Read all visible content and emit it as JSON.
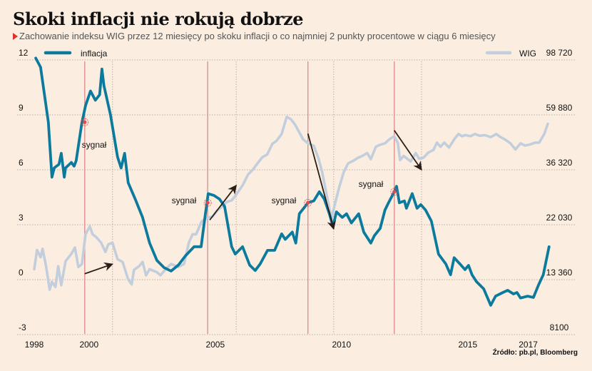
{
  "header": {
    "title": "Skoki inflacji nie rokują dobrze",
    "subtitle": "Zachowanie indeksu WIG przez 12 miesięcy po skoku inflacji o co najmniej 2 punkty procentowe w ciągu 6 miesięcy"
  },
  "source": "Źródło: pb.pl, Bloomberg",
  "colors": {
    "background": "#fbeee0",
    "inflation": "#0b7a9c",
    "wig": "#c3cedd",
    "signal_line": "#e08f92",
    "signal_dot": "#e8474b",
    "arrow": "#2a1e16",
    "grid": "#b8aea3"
  },
  "chart_data": {
    "type": "line",
    "title": "Skoki inflacji nie rokują dobrze",
    "subtitle": "Zachowanie indeksu WIG przez 12 miesięcy po skoku inflacji o co najmniej 2 punkty procentowe w ciągu 6 miesięcy",
    "x_ticks": [
      "1998",
      "2000",
      "2005",
      "2010",
      "2015",
      "2017"
    ],
    "x_tick_values": [
      1998,
      2000,
      2005,
      2010,
      2015,
      2017
    ],
    "xlim": [
      1998,
      2017.2
    ],
    "left_axis": {
      "label": "inflacja",
      "ticks": [
        "12",
        "9",
        "6",
        "3",
        "0",
        "-3"
      ],
      "tick_values": [
        12,
        9,
        6,
        3,
        0,
        -3
      ],
      "ylim": [
        -3,
        12
      ]
    },
    "right_axis": {
      "label": "WIG",
      "scale": "log",
      "ticks": [
        "98 720",
        "59 880",
        "36 320",
        "22 030",
        "13 360",
        "8100"
      ],
      "tick_values": [
        98720,
        59880,
        36320,
        22030,
        13360,
        8100
      ]
    },
    "grid": true,
    "legend": [
      {
        "name": "inflacja",
        "position": "top-left"
      },
      {
        "name": "WIG",
        "position": "top-right"
      }
    ],
    "signals": [
      {
        "label": "sygnał",
        "x": 2000.0,
        "inflation": 8.6
      },
      {
        "label": "sygnał",
        "x": 2004.87,
        "inflation": 4.2
      },
      {
        "label": "sygnał",
        "x": 2008.84,
        "inflation": 4.2
      },
      {
        "label": "sygnał",
        "x": 2012.26,
        "inflation": 4.8
      }
    ],
    "signal_followups": [
      2001.1,
      2006.0,
      2009.86,
      2013.34
    ],
    "arrows": [
      {
        "from": [
          2000.0,
          14100
        ],
        "to": [
          2001.1,
          15400
        ]
      },
      {
        "from": [
          2004.95,
          23000
        ],
        "to": [
          2006.0,
          31500
        ]
      },
      {
        "from": [
          2008.84,
          50500
        ],
        "to": [
          2009.86,
          21200
        ]
      },
      {
        "from": [
          2012.26,
          52000
        ],
        "to": [
          2013.34,
          36300
        ]
      }
    ],
    "series": [
      {
        "name": "inflacja",
        "axis": "left",
        "points": [
          [
            1998.06,
            12.1
          ],
          [
            1998.25,
            11.6
          ],
          [
            1998.56,
            8.6
          ],
          [
            1998.7,
            5.6
          ],
          [
            1998.79,
            6.1
          ],
          [
            1998.98,
            6.3
          ],
          [
            1999.07,
            6.9
          ],
          [
            1999.19,
            5.6
          ],
          [
            1999.24,
            6.1
          ],
          [
            1999.47,
            6.4
          ],
          [
            1999.58,
            6.2
          ],
          [
            1999.66,
            6.5
          ],
          [
            1999.89,
            8.6
          ],
          [
            2000.03,
            9.5
          ],
          [
            2000.23,
            10.3
          ],
          [
            2000.42,
            9.8
          ],
          [
            2000.59,
            10.1
          ],
          [
            2000.68,
            11.5
          ],
          [
            2000.76,
            10.6
          ],
          [
            2001.02,
            9.0
          ],
          [
            2001.3,
            6.7
          ],
          [
            2001.44,
            6.1
          ],
          [
            2001.58,
            6.9
          ],
          [
            2001.72,
            5.3
          ],
          [
            2002.0,
            4.4
          ],
          [
            2002.29,
            3.4
          ],
          [
            2002.57,
            2.0
          ],
          [
            2002.86,
            1.05
          ],
          [
            2003.14,
            0.66
          ],
          [
            2003.42,
            0.47
          ],
          [
            2003.71,
            0.8
          ],
          [
            2003.99,
            1.3
          ],
          [
            2004.33,
            1.8
          ],
          [
            2004.61,
            1.8
          ],
          [
            2004.78,
            3.6
          ],
          [
            2004.89,
            4.7
          ],
          [
            2005.12,
            4.6
          ],
          [
            2005.34,
            4.4
          ],
          [
            2005.54,
            4.0
          ],
          [
            2005.82,
            1.8
          ],
          [
            2005.96,
            1.4
          ],
          [
            2006.25,
            1.8
          ],
          [
            2006.53,
            0.8
          ],
          [
            2006.75,
            0.5
          ],
          [
            2006.95,
            0.86
          ],
          [
            2007.24,
            1.6
          ],
          [
            2007.52,
            1.6
          ],
          [
            2007.8,
            2.5
          ],
          [
            2007.94,
            2.2
          ],
          [
            2008.22,
            2.6
          ],
          [
            2008.36,
            2.0
          ],
          [
            2008.5,
            3.6
          ],
          [
            2008.73,
            4.0
          ],
          [
            2008.84,
            4.2
          ],
          [
            2009.07,
            4.3
          ],
          [
            2009.29,
            4.8
          ],
          [
            2009.49,
            4.4
          ],
          [
            2009.69,
            3.6
          ],
          [
            2009.83,
            2.9
          ],
          [
            2009.97,
            3.7
          ],
          [
            2010.2,
            3.4
          ],
          [
            2010.37,
            3.6
          ],
          [
            2010.56,
            3.1
          ],
          [
            2010.85,
            3.6
          ],
          [
            2011.05,
            2.6
          ],
          [
            2011.33,
            2.0
          ],
          [
            2011.47,
            2.4
          ],
          [
            2011.7,
            2.8
          ],
          [
            2011.89,
            3.8
          ],
          [
            2012.03,
            4.2
          ],
          [
            2012.26,
            4.8
          ],
          [
            2012.35,
            5.1
          ],
          [
            2012.46,
            4.2
          ],
          [
            2012.66,
            4.3
          ],
          [
            2012.74,
            3.9
          ],
          [
            2012.97,
            4.7
          ],
          [
            2013.16,
            3.9
          ],
          [
            2013.31,
            4.1
          ],
          [
            2013.5,
            3.8
          ],
          [
            2013.73,
            3.2
          ],
          [
            2014.01,
            1.4
          ],
          [
            2014.3,
            0.86
          ],
          [
            2014.49,
            0.27
          ],
          [
            2014.63,
            1.2
          ],
          [
            2014.86,
            0.86
          ],
          [
            2015.06,
            0.55
          ],
          [
            2015.2,
            0.78
          ],
          [
            2015.34,
            0.27
          ],
          [
            2015.51,
            -0.1
          ],
          [
            2015.8,
            -0.5
          ],
          [
            2016.08,
            -1.4
          ],
          [
            2016.27,
            -0.9
          ],
          [
            2016.56,
            -0.7
          ],
          [
            2016.75,
            -0.58
          ],
          [
            2016.98,
            -0.78
          ],
          [
            2017.12,
            -0.7
          ],
          [
            2017.26,
            -1.0
          ],
          [
            2017.54,
            -0.9
          ],
          [
            2017.77,
            -0.97
          ],
          [
            2017.97,
            -0.3
          ],
          [
            2018.16,
            0.27
          ],
          [
            2018.39,
            1.8
          ]
        ]
      },
      {
        "name": "WIG",
        "axis": "right",
        "points": [
          [
            1998.0,
            14700
          ],
          [
            1998.11,
            17500
          ],
          [
            1998.25,
            16400
          ],
          [
            1998.33,
            17700
          ],
          [
            1998.47,
            15100
          ],
          [
            1998.61,
            12200
          ],
          [
            1998.7,
            13100
          ],
          [
            1998.84,
            12500
          ],
          [
            1998.95,
            15100
          ],
          [
            1999.07,
            12700
          ],
          [
            1999.24,
            15800
          ],
          [
            1999.47,
            16900
          ],
          [
            1999.61,
            17900
          ],
          [
            1999.75,
            15000
          ],
          [
            1999.89,
            15400
          ],
          [
            2000.03,
            20200
          ],
          [
            2000.2,
            21700
          ],
          [
            2000.31,
            20200
          ],
          [
            2000.45,
            19700
          ],
          [
            2000.65,
            18700
          ],
          [
            2000.82,
            17200
          ],
          [
            2000.93,
            18400
          ],
          [
            2001.1,
            18700
          ],
          [
            2001.3,
            16100
          ],
          [
            2001.5,
            15700
          ],
          [
            2001.72,
            13400
          ],
          [
            2001.86,
            12800
          ],
          [
            2001.95,
            14600
          ],
          [
            2002.15,
            15100
          ],
          [
            2002.29,
            15700
          ],
          [
            2002.43,
            13900
          ],
          [
            2002.57,
            14700
          ],
          [
            2002.86,
            14300
          ],
          [
            2003.0,
            13900
          ],
          [
            2003.2,
            14700
          ],
          [
            2003.42,
            15400
          ],
          [
            2003.71,
            15000
          ],
          [
            2003.93,
            15400
          ],
          [
            2004.13,
            18800
          ],
          [
            2004.27,
            20200
          ],
          [
            2004.41,
            20200
          ],
          [
            2004.63,
            22700
          ],
          [
            2004.83,
            23500
          ],
          [
            2005.06,
            23700
          ],
          [
            2005.25,
            25100
          ],
          [
            2005.45,
            26000
          ],
          [
            2005.62,
            27100
          ],
          [
            2005.82,
            27500
          ],
          [
            2005.96,
            28600
          ],
          [
            2006.25,
            31500
          ],
          [
            2006.47,
            34800
          ],
          [
            2006.67,
            36500
          ],
          [
            2006.86,
            38700
          ],
          [
            2007.03,
            40700
          ],
          [
            2007.23,
            41800
          ],
          [
            2007.43,
            46000
          ],
          [
            2007.6,
            47300
          ],
          [
            2007.8,
            50300
          ],
          [
            2008.0,
            58800
          ],
          [
            2008.17,
            57500
          ],
          [
            2008.34,
            54600
          ],
          [
            2008.45,
            52100
          ],
          [
            2008.65,
            47900
          ],
          [
            2008.84,
            46200
          ],
          [
            2009.07,
            45200
          ],
          [
            2009.26,
            40200
          ],
          [
            2009.4,
            35600
          ],
          [
            2009.57,
            29300
          ],
          [
            2009.77,
            23300
          ],
          [
            2009.92,
            26900
          ],
          [
            2010.09,
            31300
          ],
          [
            2010.26,
            35600
          ],
          [
            2010.43,
            38500
          ],
          [
            2010.63,
            39400
          ],
          [
            2010.82,
            40500
          ],
          [
            2010.99,
            41200
          ],
          [
            2011.19,
            42300
          ],
          [
            2011.33,
            40000
          ],
          [
            2011.53,
            44800
          ],
          [
            2011.67,
            45500
          ],
          [
            2011.89,
            46200
          ],
          [
            2012.06,
            47900
          ],
          [
            2012.26,
            49300
          ],
          [
            2012.4,
            46300
          ],
          [
            2012.49,
            39700
          ],
          [
            2012.63,
            41200
          ],
          [
            2012.77,
            40200
          ],
          [
            2012.91,
            39200
          ],
          [
            2013.11,
            42300
          ],
          [
            2013.24,
            40200
          ],
          [
            2013.41,
            40500
          ],
          [
            2013.61,
            42500
          ],
          [
            2013.81,
            43500
          ],
          [
            2013.95,
            46500
          ],
          [
            2014.09,
            44800
          ],
          [
            2014.24,
            46500
          ],
          [
            2014.43,
            44500
          ],
          [
            2014.66,
            48400
          ],
          [
            2014.8,
            50300
          ],
          [
            2014.94,
            49300
          ],
          [
            2015.08,
            49800
          ],
          [
            2015.28,
            49300
          ],
          [
            2015.45,
            50300
          ],
          [
            2015.65,
            49500
          ],
          [
            2015.85,
            49800
          ],
          [
            2016.08,
            48900
          ],
          [
            2016.3,
            50300
          ],
          [
            2016.44,
            49100
          ],
          [
            2016.64,
            47900
          ],
          [
            2016.86,
            46200
          ],
          [
            2017.06,
            43700
          ],
          [
            2017.26,
            46200
          ],
          [
            2017.43,
            45300
          ],
          [
            2017.63,
            45700
          ],
          [
            2017.83,
            46500
          ],
          [
            2018.0,
            46500
          ],
          [
            2018.2,
            50300
          ],
          [
            2018.34,
            55200
          ]
        ]
      }
    ]
  }
}
